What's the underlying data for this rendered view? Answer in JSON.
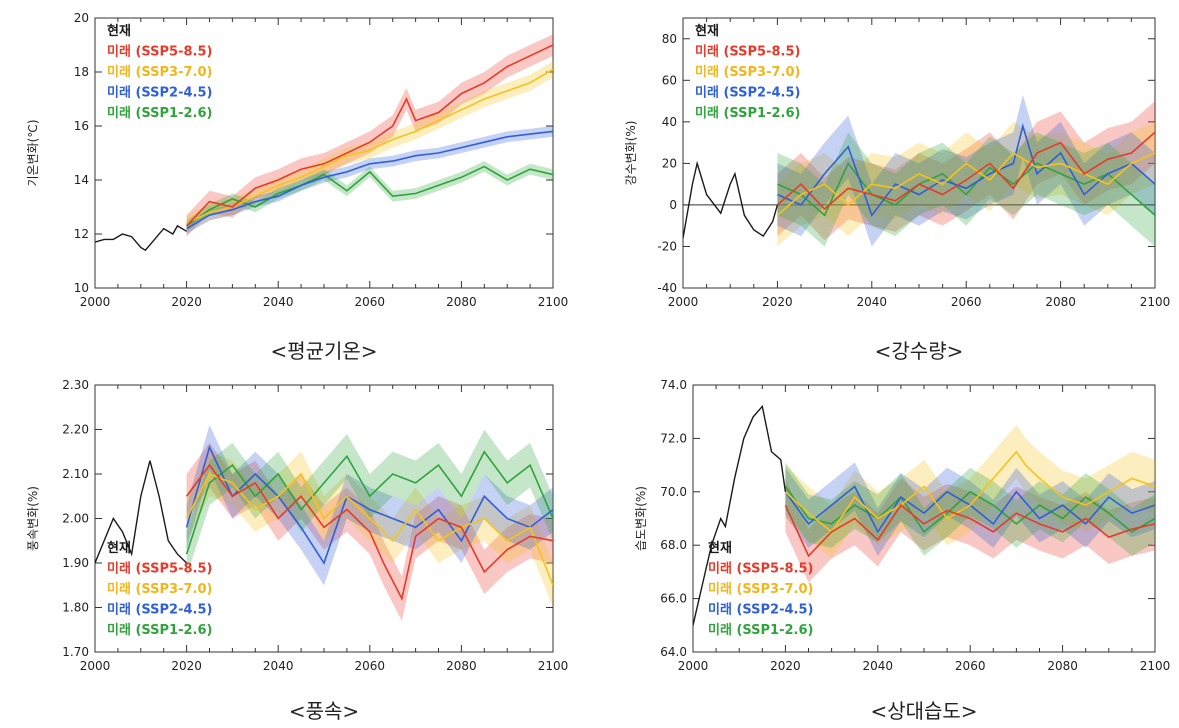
{
  "chart_data": [
    {
      "type": "line",
      "caption": "<평균기온>",
      "ylabel": "기온변화(℃)",
      "xlim": [
        2000,
        2100
      ],
      "ylim": [
        10,
        20
      ],
      "xticks": [
        2000,
        2020,
        2040,
        2060,
        2080,
        2100
      ],
      "yticks": [
        10,
        12,
        14,
        16,
        18,
        20
      ],
      "ytick_labels": [
        "10",
        "12",
        "14",
        "16",
        "18",
        "20"
      ],
      "legend_position": "top-left",
      "current": {
        "name": "현재",
        "x": [
          2000,
          2002,
          2004,
          2006,
          2008,
          2010,
          2011,
          2013,
          2015,
          2017,
          2018,
          2020
        ],
        "y": [
          11.7,
          11.8,
          11.8,
          12.0,
          11.9,
          11.5,
          11.4,
          11.8,
          12.2,
          12.0,
          12.3,
          12.1
        ]
      },
      "series": [
        {
          "name": "미래 (SSP5-8.5)",
          "x": [
            2020,
            2025,
            2030,
            2035,
            2040,
            2045,
            2050,
            2055,
            2060,
            2065,
            2068,
            2070,
            2075,
            2080,
            2085,
            2090,
            2095,
            2100
          ],
          "y": [
            12.3,
            13.2,
            13.0,
            13.7,
            14.0,
            14.4,
            14.6,
            15.0,
            15.4,
            16.0,
            17.0,
            16.2,
            16.5,
            17.2,
            17.6,
            18.2,
            18.6,
            19.0
          ],
          "band": 0.4
        },
        {
          "name": "미래 (SSP3-7.0)",
          "x": [
            2020,
            2025,
            2030,
            2035,
            2040,
            2045,
            2050,
            2055,
            2060,
            2065,
            2070,
            2075,
            2080,
            2085,
            2090,
            2095,
            2100
          ],
          "y": [
            12.4,
            12.8,
            13.0,
            13.4,
            13.8,
            14.1,
            14.5,
            14.9,
            15.1,
            15.5,
            15.8,
            16.2,
            16.6,
            17.0,
            17.3,
            17.6,
            18.1
          ],
          "band": 0.3
        },
        {
          "name": "미래 (SSP2-4.5)",
          "x": [
            2020,
            2025,
            2030,
            2035,
            2040,
            2045,
            2050,
            2055,
            2060,
            2065,
            2070,
            2075,
            2080,
            2085,
            2090,
            2095,
            2100
          ],
          "y": [
            12.2,
            12.7,
            12.9,
            13.2,
            13.4,
            13.8,
            14.1,
            14.3,
            14.6,
            14.7,
            14.9,
            15.0,
            15.2,
            15.4,
            15.6,
            15.7,
            15.8
          ],
          "band": 0.2
        },
        {
          "name": "미래 (SSP1-2.6)",
          "x": [
            2020,
            2025,
            2030,
            2035,
            2040,
            2045,
            2050,
            2055,
            2060,
            2065,
            2070,
            2075,
            2080,
            2085,
            2090,
            2095,
            2100
          ],
          "y": [
            12.3,
            12.9,
            13.3,
            13.0,
            13.5,
            13.8,
            14.2,
            13.6,
            14.3,
            13.4,
            13.5,
            13.8,
            14.1,
            14.5,
            14.0,
            14.4,
            14.2
          ],
          "band": 0.2
        }
      ]
    },
    {
      "type": "line",
      "caption": "<강수량>",
      "ylabel": "강수변화(%)",
      "xlim": [
        2000,
        2100
      ],
      "ylim": [
        -40,
        90
      ],
      "xticks": [
        2000,
        2020,
        2040,
        2060,
        2080,
        2100
      ],
      "yticks": [
        -40,
        -20,
        0,
        20,
        40,
        60,
        80
      ],
      "ytick_labels": [
        "-40",
        "-20",
        "0",
        "20",
        "40",
        "60",
        "80"
      ],
      "zero_line": 0,
      "legend_position": "top-left",
      "current": {
        "name": "현재",
        "x": [
          2000,
          2002,
          2003,
          2005,
          2006,
          2008,
          2010,
          2011,
          2013,
          2015,
          2017,
          2019,
          2020
        ],
        "y": [
          -16,
          10,
          20,
          5,
          2,
          -4,
          10,
          15,
          -5,
          -12,
          -15,
          -8,
          0
        ],
        "band": 0
      },
      "series": [
        {
          "name": "미래 (SSP5-8.5)",
          "x": [
            2020,
            2025,
            2030,
            2035,
            2040,
            2045,
            2050,
            2055,
            2060,
            2065,
            2070,
            2075,
            2080,
            2085,
            2090,
            2095,
            2100
          ],
          "y": [
            0,
            10,
            -2,
            8,
            5,
            2,
            10,
            5,
            12,
            20,
            8,
            25,
            30,
            15,
            22,
            25,
            35
          ],
          "band": 15
        },
        {
          "name": "미래 (SSP3-7.0)",
          "x": [
            2020,
            2025,
            2030,
            2035,
            2040,
            2045,
            2050,
            2055,
            2060,
            2065,
            2070,
            2075,
            2080,
            2085,
            2090,
            2095,
            2100
          ],
          "y": [
            -5,
            5,
            10,
            0,
            10,
            8,
            15,
            10,
            20,
            12,
            25,
            18,
            20,
            15,
            10,
            20,
            25
          ],
          "band": 15
        },
        {
          "name": "미래 (SSP2-4.5)",
          "x": [
            2020,
            2025,
            2030,
            2035,
            2040,
            2045,
            2050,
            2055,
            2060,
            2065,
            2070,
            2072,
            2075,
            2080,
            2085,
            2090,
            2095,
            2100
          ],
          "y": [
            5,
            0,
            15,
            28,
            -5,
            10,
            5,
            12,
            8,
            15,
            20,
            38,
            15,
            25,
            5,
            15,
            20,
            10
          ],
          "band": 15
        },
        {
          "name": "미래 (SSP1-2.6)",
          "x": [
            2020,
            2025,
            2030,
            2035,
            2040,
            2045,
            2050,
            2055,
            2060,
            2065,
            2070,
            2075,
            2080,
            2085,
            2090,
            2095,
            2100
          ],
          "y": [
            10,
            5,
            -5,
            20,
            5,
            0,
            10,
            15,
            5,
            18,
            10,
            20,
            15,
            10,
            15,
            5,
            -5
          ],
          "band": 15
        }
      ]
    },
    {
      "type": "line",
      "caption": "<풍속>",
      "ylabel": "풍속변화(%)",
      "xlim": [
        2000,
        2100
      ],
      "ylim": [
        1.7,
        2.3
      ],
      "xticks": [
        2000,
        2020,
        2040,
        2060,
        2080,
        2100
      ],
      "yticks": [
        1.7,
        1.8,
        1.9,
        2.0,
        2.1,
        2.2,
        2.3
      ],
      "ytick_labels": [
        "1.70",
        "1.80",
        "1.90",
        "2.00",
        "2.10",
        "2.20",
        "2.30"
      ],
      "legend_position": "bottom-left",
      "current": {
        "name": "현재",
        "x": [
          2000,
          2002,
          2004,
          2006,
          2008,
          2010,
          2012,
          2014,
          2016,
          2018,
          2020
        ],
        "y": [
          1.9,
          1.95,
          2.0,
          1.97,
          1.92,
          2.05,
          2.13,
          2.05,
          1.95,
          1.92,
          1.9
        ],
        "band": 0
      },
      "series": [
        {
          "name": "미래 (SSP5-8.5)",
          "x": [
            2020,
            2025,
            2030,
            2035,
            2040,
            2045,
            2050,
            2055,
            2060,
            2063,
            2067,
            2070,
            2075,
            2080,
            2085,
            2090,
            2095,
            2100
          ],
          "y": [
            2.05,
            2.12,
            2.05,
            2.08,
            2.0,
            2.05,
            1.98,
            2.02,
            1.97,
            1.9,
            1.82,
            1.96,
            2.0,
            1.98,
            1.88,
            1.93,
            1.96,
            1.95
          ],
          "band": 0.05
        },
        {
          "name": "미래 (SSP3-7.0)",
          "x": [
            2020,
            2025,
            2030,
            2035,
            2040,
            2045,
            2050,
            2055,
            2060,
            2065,
            2070,
            2075,
            2080,
            2085,
            2090,
            2095,
            2100
          ],
          "y": [
            2.0,
            2.1,
            2.08,
            2.02,
            2.05,
            2.1,
            2.0,
            2.05,
            2.0,
            1.95,
            2.02,
            1.95,
            1.98,
            2.0,
            1.95,
            1.98,
            1.85
          ],
          "band": 0.05
        },
        {
          "name": "미래 (SSP2-4.5)",
          "x": [
            2020,
            2025,
            2030,
            2035,
            2040,
            2045,
            2050,
            2055,
            2060,
            2065,
            2070,
            2075,
            2080,
            2085,
            2090,
            2095,
            2100
          ],
          "y": [
            1.98,
            2.16,
            2.05,
            2.1,
            2.05,
            1.98,
            1.9,
            2.05,
            2.02,
            2.0,
            1.98,
            2.02,
            1.95,
            2.05,
            2.0,
            1.98,
            2.02
          ],
          "band": 0.05
        },
        {
          "name": "미래 (SSP1-2.6)",
          "x": [
            2020,
            2025,
            2030,
            2035,
            2040,
            2045,
            2050,
            2055,
            2060,
            2065,
            2070,
            2075,
            2080,
            2085,
            2090,
            2095,
            2100
          ],
          "y": [
            1.92,
            2.08,
            2.12,
            2.05,
            2.1,
            2.02,
            2.08,
            2.14,
            2.05,
            2.1,
            2.08,
            2.12,
            2.05,
            2.15,
            2.08,
            2.12,
            2.0
          ],
          "band": 0.05
        }
      ]
    },
    {
      "type": "line",
      "caption": "<상대습도>",
      "ylabel": "습도변화(%)",
      "xlim": [
        2000,
        2100
      ],
      "ylim": [
        64,
        74
      ],
      "xticks": [
        2000,
        2020,
        2040,
        2060,
        2080,
        2100
      ],
      "yticks": [
        64,
        66,
        68,
        70,
        72,
        74
      ],
      "ytick_labels": [
        "64.0",
        "66.0",
        "68.0",
        "70.0",
        "72.0",
        "74.0"
      ],
      "legend_position": "bottom-left",
      "current": {
        "name": "현재",
        "x": [
          2000,
          2002,
          2004,
          2006,
          2007,
          2009,
          2011,
          2013,
          2015,
          2017,
          2019,
          2020
        ],
        "y": [
          65.0,
          66.5,
          68.0,
          69.0,
          68.7,
          70.5,
          72.0,
          72.8,
          73.2,
          71.5,
          71.2,
          70.0
        ],
        "band": 0
      },
      "series": [
        {
          "name": "미래 (SSP5-8.5)",
          "x": [
            2020,
            2025,
            2030,
            2035,
            2040,
            2045,
            2050,
            2055,
            2060,
            2065,
            2070,
            2075,
            2080,
            2085,
            2090,
            2095,
            2100
          ],
          "y": [
            69.5,
            67.6,
            68.5,
            69.0,
            68.2,
            69.5,
            68.8,
            69.3,
            69.0,
            68.5,
            69.2,
            68.8,
            68.5,
            69.0,
            68.3,
            68.6,
            68.8
          ],
          "band": 1.0
        },
        {
          "name": "미래 (SSP3-7.0)",
          "x": [
            2020,
            2025,
            2030,
            2035,
            2040,
            2045,
            2050,
            2055,
            2060,
            2065,
            2070,
            2072,
            2075,
            2080,
            2085,
            2090,
            2095,
            2100
          ],
          "y": [
            70.0,
            69.2,
            68.5,
            69.8,
            69.0,
            69.5,
            70.2,
            69.0,
            69.5,
            70.5,
            71.5,
            71.0,
            70.5,
            69.8,
            69.5,
            70.0,
            70.5,
            70.2
          ],
          "band": 1.0
        },
        {
          "name": "미래 (SSP2-4.5)",
          "x": [
            2020,
            2025,
            2030,
            2035,
            2040,
            2045,
            2050,
            2055,
            2060,
            2065,
            2070,
            2075,
            2080,
            2085,
            2090,
            2095,
            2100
          ],
          "y": [
            70.0,
            68.8,
            69.5,
            70.2,
            68.5,
            69.8,
            69.2,
            70.0,
            69.5,
            68.8,
            70.0,
            69.0,
            69.5,
            68.8,
            69.8,
            69.2,
            69.5
          ],
          "band": 0.9
        },
        {
          "name": "미래 (SSP1-2.6)",
          "x": [
            2020,
            2025,
            2030,
            2035,
            2040,
            2045,
            2050,
            2055,
            2060,
            2065,
            2070,
            2075,
            2080,
            2085,
            2090,
            2095,
            2100
          ],
          "y": [
            70.2,
            69.0,
            68.8,
            69.5,
            69.0,
            69.8,
            68.5,
            69.2,
            70.0,
            69.5,
            68.8,
            69.5,
            69.0,
            69.8,
            69.2,
            68.5,
            69.0
          ],
          "band": 0.9
        }
      ]
    }
  ],
  "colors": {
    "current": "#1a1a1a",
    "SSP5-8.5": "#e83a2a",
    "SSP3-7.0": "#f7c21a",
    "SSP2-4.5": "#2f5fd9",
    "SSP1-2.6": "#2ea43a"
  },
  "legend_text_colors": {
    "current": "#1a1a1a",
    "SSP5-8.5": "#e83a2a",
    "SSP3-7.0": "#f2b61a",
    "SSP2-4.5": "#2f5fd9",
    "SSP1-2.6": "#2ea43a"
  }
}
